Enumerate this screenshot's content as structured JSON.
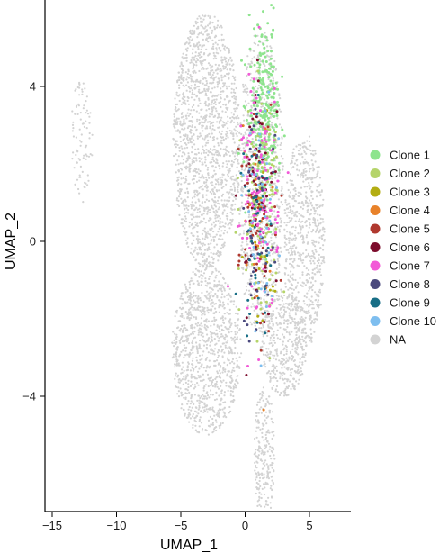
{
  "chart_data": {
    "type": "scatter",
    "xlabel": "UMAP_1",
    "ylabel": "UMAP_2",
    "xlim": [
      -15.5,
      8
    ],
    "ylim": [
      -7,
      6.2
    ],
    "x_ticks": [
      -15,
      -10,
      -5,
      0,
      5
    ],
    "y_ticks": [
      -4,
      0,
      4
    ],
    "legend_position": "right",
    "background_series": {
      "name": "NA",
      "color": "#d3d3d3",
      "regions": [
        {
          "cx": -12.7,
          "cy": 2.6,
          "rx": 0.9,
          "ry": 1.6,
          "density": 90
        },
        {
          "cx": -3.0,
          "cy": 2.6,
          "rx": 2.6,
          "ry": 3.3,
          "density": 1500
        },
        {
          "cx": -3.0,
          "cy": -2.8,
          "rx": 2.7,
          "ry": 2.2,
          "density": 1000
        },
        {
          "cx": 1.5,
          "cy": -5.5,
          "rx": 0.8,
          "ry": 1.8,
          "density": 250
        },
        {
          "cx": 4.6,
          "cy": 0.0,
          "rx": 1.6,
          "ry": 2.8,
          "density": 700
        },
        {
          "cx": 3.0,
          "cy": -2.6,
          "rx": 1.8,
          "ry": 1.4,
          "density": 400
        },
        {
          "cx": 1.2,
          "cy": 1.5,
          "rx": 1.8,
          "ry": 4.0,
          "density": 800
        }
      ]
    },
    "series": [
      {
        "name": "Clone 1",
        "color": "#8ee48e",
        "cx": 1.5,
        "cy": 3.3,
        "rx": 1.2,
        "ry": 2.2,
        "count": 260
      },
      {
        "name": "Clone 2",
        "color": "#b5d46a",
        "cx": 1.2,
        "cy": 1.2,
        "rx": 1.4,
        "ry": 2.4,
        "count": 150
      },
      {
        "name": "Clone 3",
        "color": "#b3ad12",
        "cx": 1.0,
        "cy": 0.5,
        "rx": 1.3,
        "ry": 3.0,
        "count": 25
      },
      {
        "name": "Clone 4",
        "color": "#e8822a",
        "cx": 1.0,
        "cy": 0.5,
        "rx": 1.3,
        "ry": 3.0,
        "count": 25
      },
      {
        "name": "Clone 5",
        "color": "#b0392f",
        "cx": 1.0,
        "cy": 0.8,
        "rx": 1.4,
        "ry": 3.2,
        "count": 60
      },
      {
        "name": "Clone 6",
        "color": "#7c0c2c",
        "cx": 1.0,
        "cy": 0.8,
        "rx": 1.4,
        "ry": 3.2,
        "count": 60
      },
      {
        "name": "Clone 7",
        "color": "#f25ad7",
        "cx": 1.2,
        "cy": 1.2,
        "rx": 1.4,
        "ry": 3.2,
        "count": 120
      },
      {
        "name": "Clone 8",
        "color": "#4b4a7e",
        "cx": 1.0,
        "cy": 0.3,
        "rx": 1.3,
        "ry": 3.0,
        "count": 50
      },
      {
        "name": "Clone 9",
        "color": "#186e86",
        "cx": 1.0,
        "cy": 0.5,
        "rx": 1.3,
        "ry": 3.0,
        "count": 45
      },
      {
        "name": "Clone 10",
        "color": "#7ebeef",
        "cx": 1.2,
        "cy": 0.5,
        "rx": 1.4,
        "ry": 3.2,
        "count": 45
      }
    ],
    "legend": [
      "Clone 1",
      "Clone 2",
      "Clone 3",
      "Clone 4",
      "Clone 5",
      "Clone 6",
      "Clone 7",
      "Clone 8",
      "Clone 9",
      "Clone 10",
      "NA"
    ]
  }
}
